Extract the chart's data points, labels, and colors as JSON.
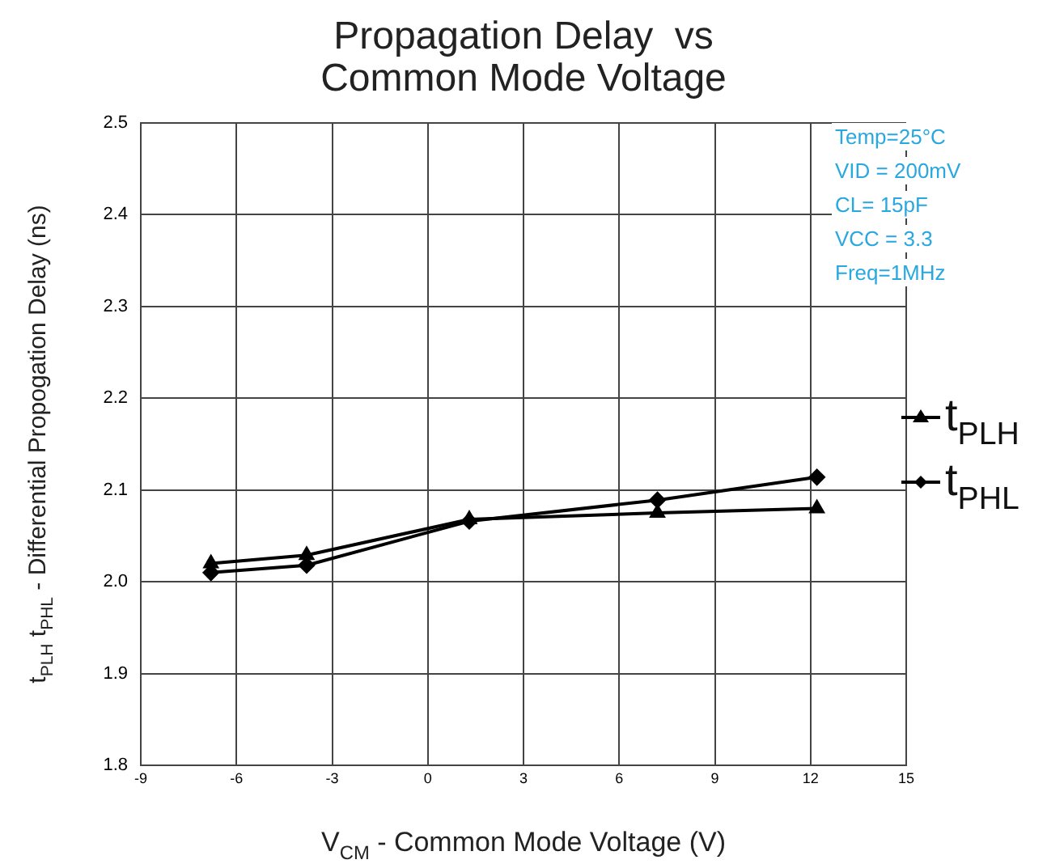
{
  "chart_data": {
    "type": "line",
    "title": "Propagation Delay  vs\nCommon Mode Voltage",
    "xlabel": "V$_{CM}$ - Common Mode Voltage (V)",
    "ylabel": "t$_{PLH}$ t$_{PHL}$ - Differential Propogation Delay (ns)",
    "x": [
      -6.8,
      -3.8,
      1.3,
      7.2,
      12.2
    ],
    "series": [
      {
        "name": "t$_{PLH}$",
        "color": "#000000",
        "marker": "triangle",
        "values": [
          2.02,
          2.029,
          2.068,
          2.075,
          2.08
        ]
      },
      {
        "name": "t$_{PHL}$",
        "color": "#000000",
        "marker": "diamond",
        "values": [
          2.01,
          2.018,
          2.066,
          2.089,
          2.114
        ]
      }
    ],
    "xlim": [
      -9,
      15
    ],
    "xticks": [
      -9,
      -6,
      -3,
      0,
      3,
      6,
      9,
      12,
      15
    ],
    "ylim": [
      1.8,
      2.5
    ],
    "yticks": [
      {
        "value": 1.8,
        "label": "1.8"
      },
      {
        "value": 1.9,
        "label": "1.9"
      },
      {
        "value": 2,
        "label": "2.0"
      },
      {
        "value": 2.1,
        "label": "2.1"
      },
      {
        "value": 2.2,
        "label": "2.2"
      },
      {
        "value": 2.3,
        "label": "2.3"
      },
      {
        "value": 2.4,
        "label": "2.4"
      },
      {
        "value": 2.5,
        "label": "2.5"
      }
    ],
    "annotations": [
      "Temp=25°C",
      "VID = 200mV",
      "CL= 15pF",
      "VCC = 3.3",
      "Freq=1MHz"
    ],
    "grid": true,
    "legend": "right",
    "line_style": "solid"
  }
}
